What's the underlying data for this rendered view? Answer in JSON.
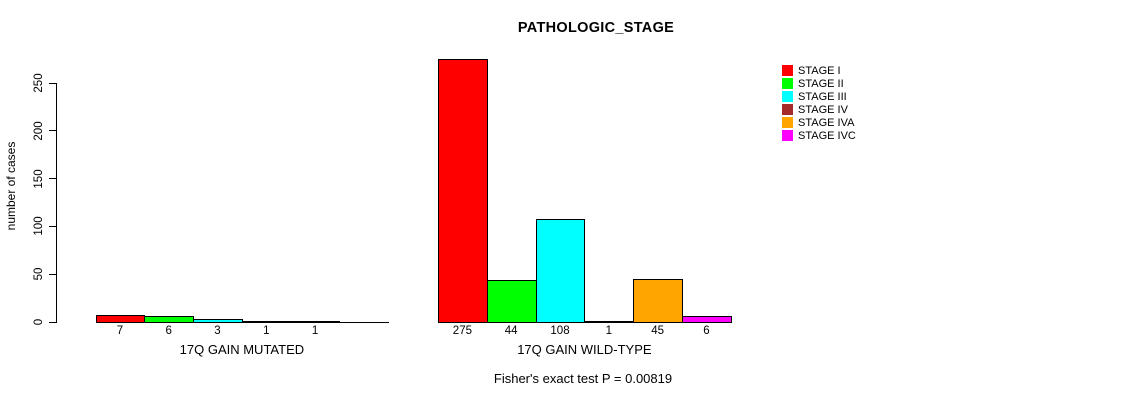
{
  "title": "PATHOLOGIC_STAGE",
  "footer": "Fisher's exact test P = 0.00819",
  "y_axis": {
    "label": "number of cases",
    "ticks": [
      0,
      50,
      100,
      150,
      200,
      250
    ]
  },
  "legend": {
    "items": [
      {
        "label": "STAGE I",
        "color": "#FF0000"
      },
      {
        "label": "STAGE II",
        "color": "#00FF00"
      },
      {
        "label": "STAGE III",
        "color": "#00FFFF"
      },
      {
        "label": "STAGE IV",
        "color": "#A52A2A"
      },
      {
        "label": "STAGE IVA",
        "color": "#FFA500"
      },
      {
        "label": "STAGE IVC",
        "color": "#FF00FF"
      }
    ]
  },
  "chart_data": {
    "type": "bar",
    "title": "PATHOLOGIC_STAGE",
    "ylabel": "number of cases",
    "ylim": [
      0,
      275
    ],
    "yticks": [
      0,
      50,
      100,
      150,
      200,
      250
    ],
    "grid": false,
    "legend_position": "right",
    "categories": [
      "STAGE I",
      "STAGE II",
      "STAGE III",
      "STAGE IV",
      "STAGE IVA",
      "STAGE IVC"
    ],
    "colors": [
      "#FF0000",
      "#00FF00",
      "#00FFFF",
      "#A52A2A",
      "#FFA500",
      "#FF00FF"
    ],
    "series": [
      {
        "name": "17Q GAIN MUTATED",
        "values": [
          7,
          6,
          3,
          1,
          1,
          0
        ],
        "bar_labels": [
          "7",
          "6",
          "3",
          "1",
          "1",
          ""
        ]
      },
      {
        "name": "17Q GAIN WILD-TYPE",
        "values": [
          275,
          44,
          108,
          1,
          45,
          6
        ],
        "bar_labels": [
          "275",
          "44",
          "108",
          "1",
          "45",
          "6"
        ]
      }
    ],
    "annotation": "Fisher's exact test P = 0.00819"
  }
}
